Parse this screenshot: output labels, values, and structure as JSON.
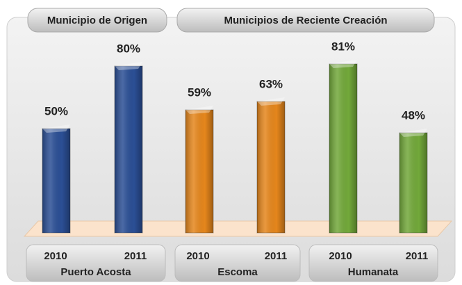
{
  "chart_data": {
    "type": "bar",
    "panels": [
      "Municipio de Origen",
      "Municipios de Reciente Creación"
    ],
    "groups": [
      {
        "name": "Puerto Acosta",
        "color": "#2b4f95",
        "categories": [
          "2010",
          "2011"
        ],
        "values": [
          50,
          80
        ],
        "value_labels": [
          "50%",
          "80%"
        ]
      },
      {
        "name": "Escoma",
        "color": "#e5861c",
        "categories": [
          "2010",
          "2011"
        ],
        "values": [
          59,
          63
        ],
        "value_labels": [
          "59%",
          "63%"
        ]
      },
      {
        "name": "Humanata",
        "color": "#72a83a",
        "categories": [
          "2010",
          "2011"
        ],
        "values": [
          81,
          48
        ],
        "value_labels": [
          "81%",
          "48%"
        ]
      }
    ]
  }
}
